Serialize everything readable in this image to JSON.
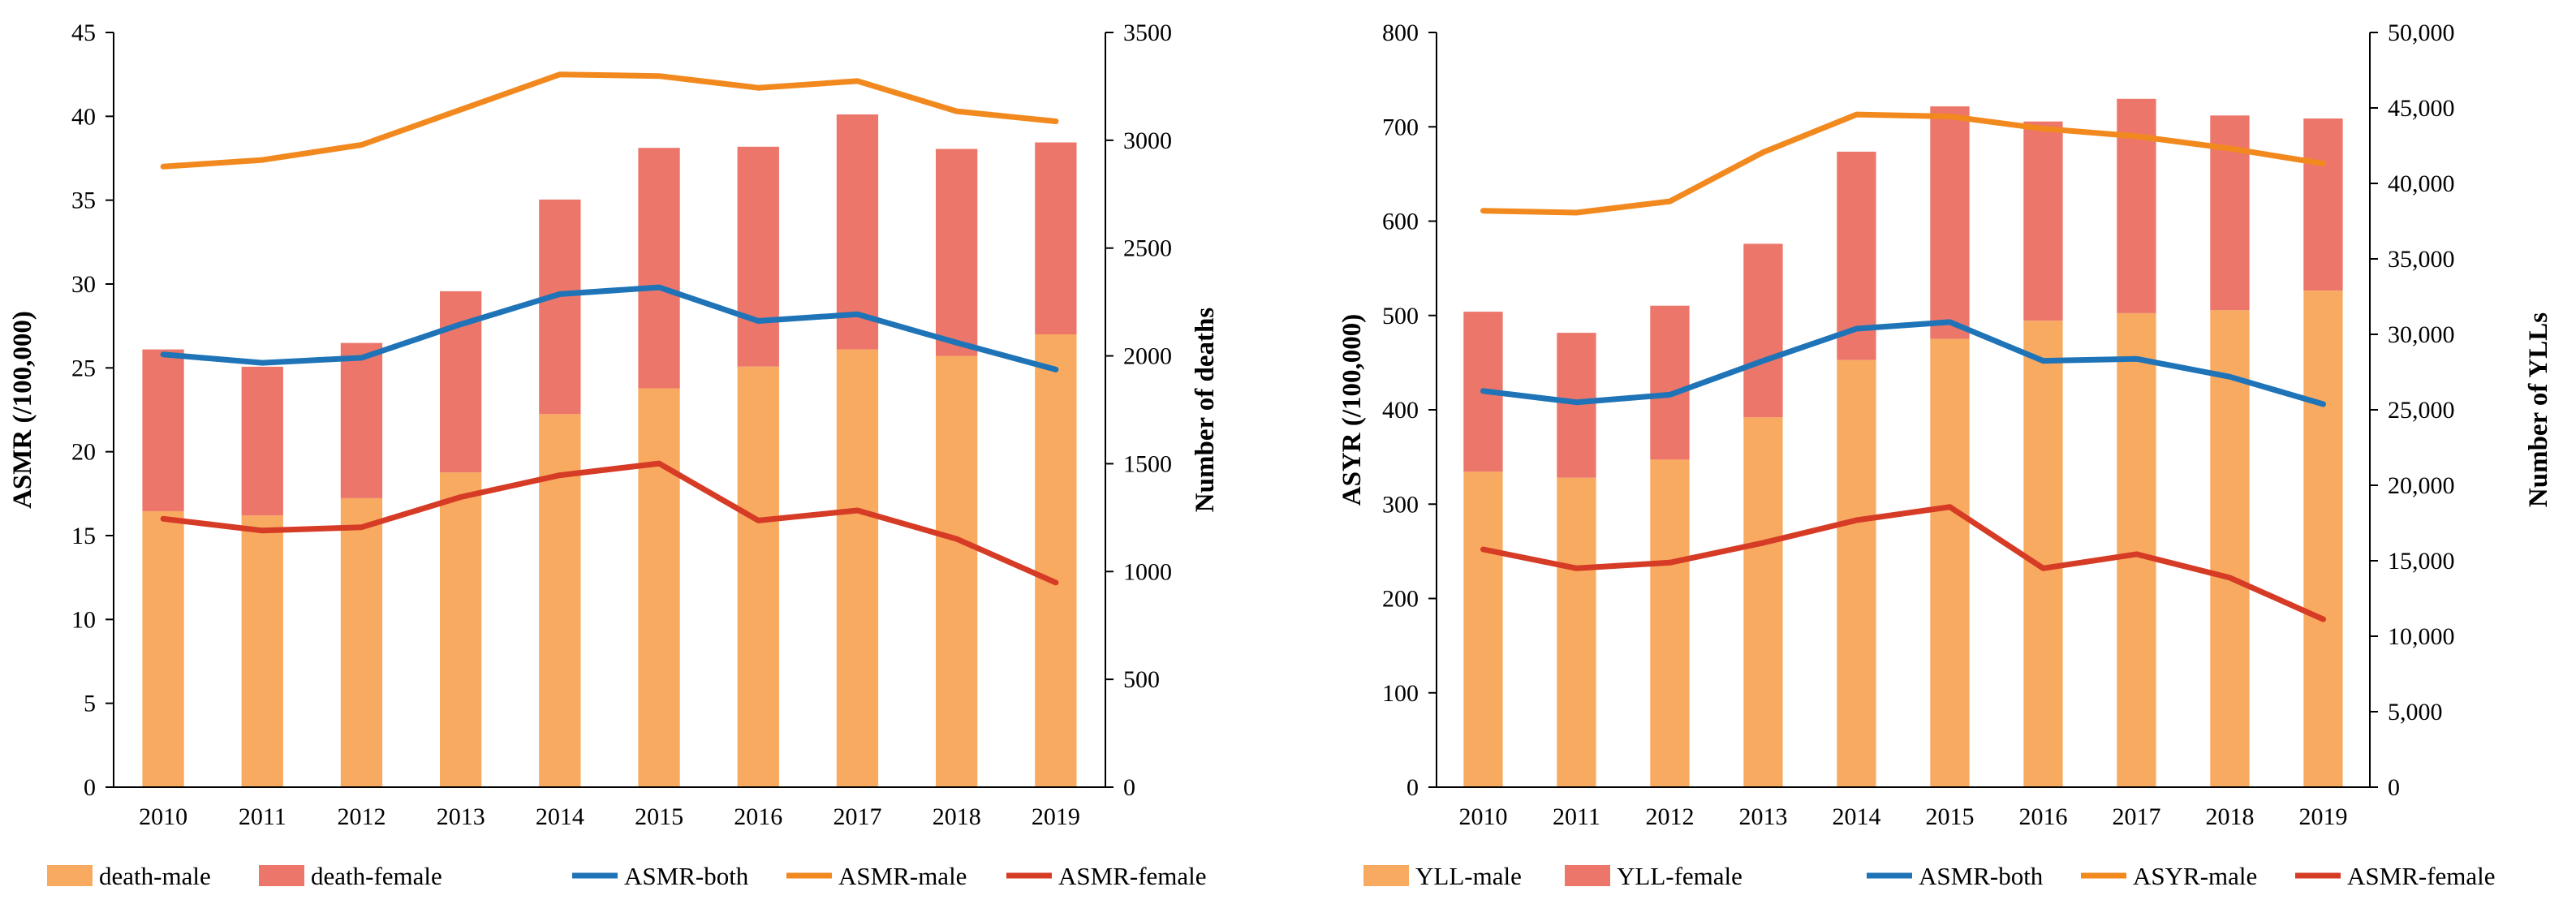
{
  "colors": {
    "death_male": "#F9AA61",
    "death_female": "#EC766A",
    "asmr_both": "#1F74B7",
    "asmr_male": "#F2891F",
    "asmr_female": "#D63B26",
    "axis": "#000000"
  },
  "chart_data": [
    {
      "type": "bar+line",
      "title": "",
      "categories": [
        "2010",
        "2011",
        "2012",
        "2013",
        "2014",
        "2015",
        "2016",
        "2017",
        "2018",
        "2019"
      ],
      "ylabel_left": "ASMR (/100,000)",
      "ylabel_right": "Number of deaths",
      "ylim_left": [
        0,
        45
      ],
      "ylim_right": [
        0,
        3500
      ],
      "yticks_left": [
        "0",
        "5",
        "10",
        "15",
        "20",
        "25",
        "30",
        "35",
        "40",
        "45"
      ],
      "yticks_right": [
        "0",
        "500",
        "1000",
        "1500",
        "2000",
        "2500",
        "3000",
        "3500"
      ],
      "bar_series": [
        {
          "name": "death-male",
          "axis": "right",
          "stacked": true,
          "color_key": "death_male",
          "values": [
            1280,
            1260,
            1340,
            1460,
            1730,
            1850,
            1950,
            2030,
            2000,
            2100
          ]
        },
        {
          "name": "death-female",
          "axis": "right",
          "stacked": true,
          "color_key": "death_female",
          "values": [
            750,
            690,
            720,
            840,
            995,
            1115,
            1020,
            1090,
            960,
            890
          ]
        }
      ],
      "line_series": [
        {
          "name": "ASMR-both",
          "axis": "left",
          "color_key": "asmr_both",
          "values": [
            25.8,
            25.3,
            25.6,
            27.6,
            29.4,
            29.8,
            27.8,
            28.2,
            26.5,
            24.9
          ]
        },
        {
          "name": "ASMR-male",
          "axis": "left",
          "color_key": "asmr_male",
          "values": [
            37.0,
            37.4,
            38.3,
            40.4,
            42.5,
            42.4,
            41.7,
            42.1,
            40.3,
            39.7
          ]
        },
        {
          "name": "ASMR-female",
          "axis": "left",
          "color_key": "asmr_female",
          "values": [
            16.0,
            15.3,
            15.5,
            17.3,
            18.6,
            19.3,
            15.9,
            16.5,
            14.8,
            12.2
          ]
        }
      ],
      "legend": [
        "death-male",
        "death-female",
        "ASMR-both",
        "ASMR-male",
        "ASMR-female"
      ],
      "legend_position": "bottom"
    },
    {
      "type": "bar+line",
      "title": "",
      "categories": [
        "2010",
        "2011",
        "2012",
        "2013",
        "2014",
        "2015",
        "2016",
        "2017",
        "2018",
        "2019"
      ],
      "ylabel_left": "ASYR (/100,000)",
      "ylabel_right": "Number of YLLs",
      "ylim_left": [
        0,
        800
      ],
      "ylim_right": [
        0,
        50000
      ],
      "yticks_left": [
        "0",
        "100",
        "200",
        "300",
        "400",
        "500",
        "600",
        "700",
        "800"
      ],
      "yticks_right": [
        "0",
        "5,000",
        "10,000",
        "15,000",
        "20,000",
        "25,000",
        "30,000",
        "35,000",
        "40,000",
        "45,000",
        "50,000"
      ],
      "bar_series": [
        {
          "name": "YLL-male",
          "axis": "right",
          "stacked": true,
          "color_key": "death_male",
          "values": [
            20900,
            20500,
            21700,
            24500,
            28300,
            29700,
            30900,
            31400,
            31600,
            32900
          ]
        },
        {
          "name": "YLL-female",
          "axis": "right",
          "stacked": true,
          "color_key": "death_female",
          "values": [
            10600,
            9600,
            10200,
            11500,
            13800,
            15400,
            13200,
            14200,
            12900,
            11400
          ]
        }
      ],
      "line_series": [
        {
          "name": "ASMR-both",
          "axis": "left",
          "color_key": "asmr_both",
          "values": [
            420,
            408,
            416,
            452,
            486,
            493,
            452,
            454,
            435,
            406
          ]
        },
        {
          "name": "ASYR-male",
          "axis": "left",
          "color_key": "asmr_male",
          "values": [
            611,
            609,
            621,
            673,
            713,
            711,
            698,
            690,
            677,
            661
          ]
        },
        {
          "name": "ASMR-female",
          "axis": "left",
          "color_key": "asmr_female",
          "values": [
            252,
            232,
            238,
            259,
            283,
            297,
            232,
            247,
            222,
            178
          ]
        }
      ],
      "legend": [
        "YLL-male",
        "YLL-female",
        "ASMR-both",
        "ASYR-male",
        "ASMR-female"
      ],
      "legend_position": "bottom"
    }
  ]
}
